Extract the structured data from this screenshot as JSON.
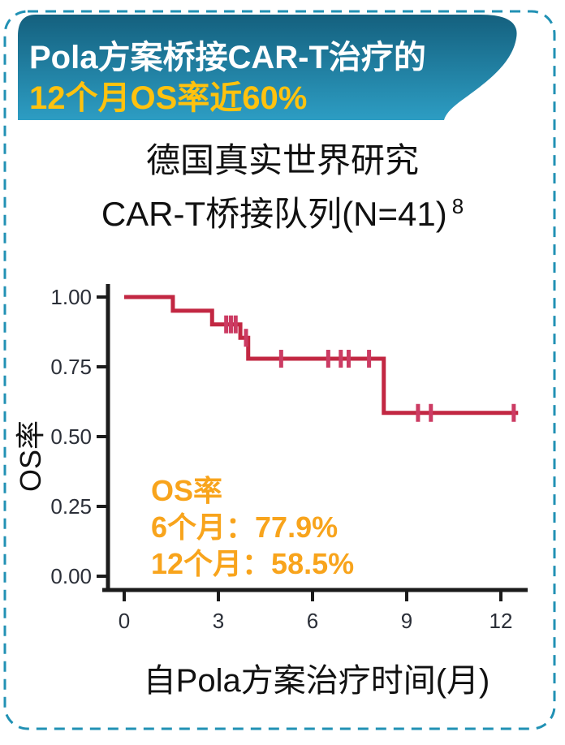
{
  "frame": {
    "border_color": "#2191B4"
  },
  "banner": {
    "line1": "Pola方案桥接CAR-T治疗的",
    "line2": "12个月OS率近60%",
    "bg_top": "#14607E",
    "bg_bottom": "#2D9DC3",
    "line1_color": "#FFFFFF",
    "line2_color": "#FFC20E"
  },
  "subtitle": {
    "line1": "德国真实世界研究",
    "line2": "CAR-T桥接队列(N=41)",
    "ref": "8"
  },
  "chart_data": {
    "type": "line",
    "subtype": "kaplan-meier-step",
    "title": "",
    "xlabel": "自Pola方案治疗时间(月)",
    "ylabel": "OS率",
    "x_ticks": [
      0,
      3,
      6,
      9,
      12
    ],
    "y_ticks": [
      1.0,
      0.75,
      0.5,
      0.25,
      0.0
    ],
    "y_tick_labels": [
      "1.00",
      "0.75",
      "0.50",
      "0.25",
      "0.00"
    ],
    "xlim": [
      0,
      12.8
    ],
    "ylim": [
      0,
      1
    ],
    "grid": false,
    "axis_color": "#1B1B1B",
    "tick_label_color": "#2B2F38",
    "line_color": "#C22742",
    "censor_color": "#CC3B63",
    "series": [
      {
        "name": "CAR-T桥接队列",
        "n": 41,
        "steps": [
          [
            0,
            1.0
          ],
          [
            1.55,
            0.951
          ],
          [
            2.8,
            0.902
          ],
          [
            3.7,
            0.854
          ],
          [
            3.95,
            0.779
          ],
          [
            8.27,
            0.585
          ]
        ],
        "end_month": 12.55,
        "censors": [
          [
            3.25,
            0.902
          ],
          [
            3.4,
            0.902
          ],
          [
            3.55,
            0.902
          ],
          [
            3.88,
            0.854
          ],
          [
            5.0,
            0.779
          ],
          [
            6.5,
            0.779
          ],
          [
            6.9,
            0.779
          ],
          [
            7.15,
            0.779
          ],
          [
            7.8,
            0.779
          ],
          [
            9.36,
            0.585
          ],
          [
            9.77,
            0.585
          ],
          [
            12.41,
            0.585
          ]
        ]
      }
    ],
    "annotation": {
      "heading": "OS率",
      "line1": "6个月：77.9%",
      "line2": "12个月：58.5%",
      "color": "#F8A41C"
    }
  }
}
